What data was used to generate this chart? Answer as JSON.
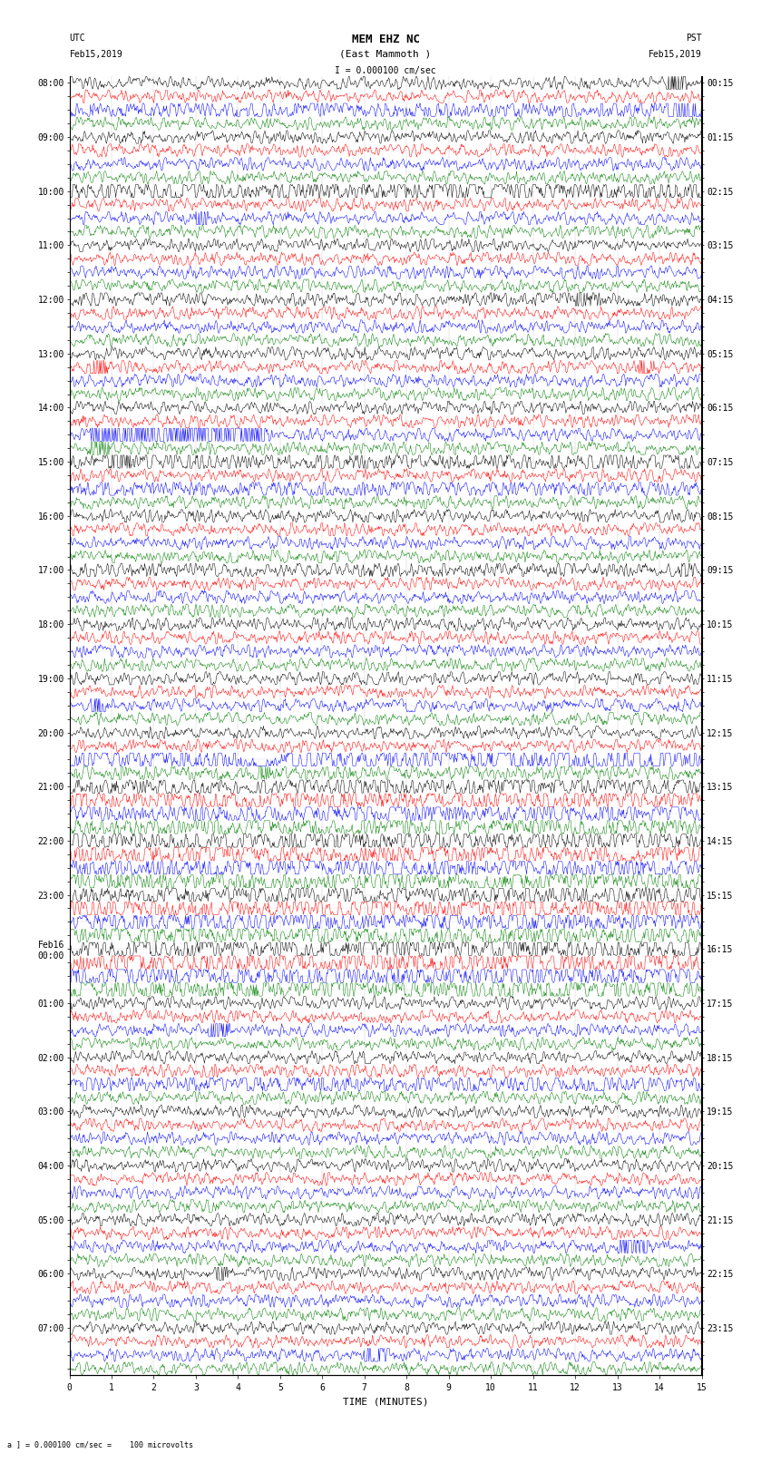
{
  "title_line1": "MEM EHZ NC",
  "title_line2": "(East Mammoth )",
  "scale_label": "I = 0.000100 cm/sec",
  "bottom_label": "a ] = 0.000100 cm/sec =    100 microvolts",
  "xlabel": "TIME (MINUTES)",
  "utc_times": [
    "08:00",
    "",
    "",
    "",
    "09:00",
    "",
    "",
    "",
    "10:00",
    "",
    "",
    "",
    "11:00",
    "",
    "",
    "",
    "12:00",
    "",
    "",
    "",
    "13:00",
    "",
    "",
    "",
    "14:00",
    "",
    "",
    "",
    "15:00",
    "",
    "",
    "",
    "16:00",
    "",
    "",
    "",
    "17:00",
    "",
    "",
    "",
    "18:00",
    "",
    "",
    "",
    "19:00",
    "",
    "",
    "",
    "20:00",
    "",
    "",
    "",
    "21:00",
    "",
    "",
    "",
    "22:00",
    "",
    "",
    "",
    "23:00",
    "",
    "",
    "",
    "Feb16\n00:00",
    "",
    "",
    "",
    "01:00",
    "",
    "",
    "",
    "02:00",
    "",
    "",
    "",
    "03:00",
    "",
    "",
    "",
    "04:00",
    "",
    "",
    "",
    "05:00",
    "",
    "",
    "",
    "06:00",
    "",
    "",
    "",
    "07:00",
    "",
    "",
    ""
  ],
  "pst_times": [
    "00:15",
    "",
    "",
    "",
    "01:15",
    "",
    "",
    "",
    "02:15",
    "",
    "",
    "",
    "03:15",
    "",
    "",
    "",
    "04:15",
    "",
    "",
    "",
    "05:15",
    "",
    "",
    "",
    "06:15",
    "",
    "",
    "",
    "07:15",
    "",
    "",
    "",
    "08:15",
    "",
    "",
    "",
    "09:15",
    "",
    "",
    "",
    "10:15",
    "",
    "",
    "",
    "11:15",
    "",
    "",
    "",
    "12:15",
    "",
    "",
    "",
    "13:15",
    "",
    "",
    "",
    "14:15",
    "",
    "",
    "",
    "15:15",
    "",
    "",
    "",
    "16:15",
    "",
    "",
    "",
    "17:15",
    "",
    "",
    "",
    "18:15",
    "",
    "",
    "",
    "19:15",
    "",
    "",
    "",
    "20:15",
    "",
    "",
    "",
    "21:15",
    "",
    "",
    "",
    "22:15",
    "",
    "",
    "",
    "23:15",
    "",
    "",
    ""
  ],
  "colors": [
    "black",
    "red",
    "blue",
    "green"
  ],
  "n_rows": 96,
  "n_samples": 900,
  "fig_width": 8.5,
  "fig_height": 16.13,
  "bg_color": "white",
  "grid_color": "#bbbbbb",
  "title_fontsize": 9,
  "tick_fontsize": 7
}
